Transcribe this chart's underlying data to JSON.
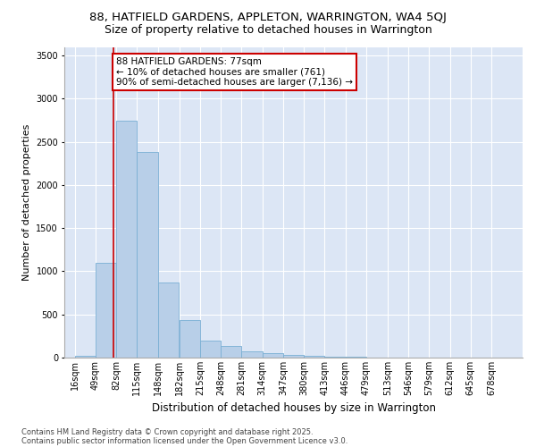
{
  "title_line1": "88, HATFIELD GARDENS, APPLETON, WARRINGTON, WA4 5QJ",
  "title_line2": "Size of property relative to detached houses in Warrington",
  "xlabel": "Distribution of detached houses by size in Warrington",
  "ylabel": "Number of detached properties",
  "bar_color": "#b8cfe8",
  "bar_edge_color": "#7aafd4",
  "bg_color": "#dce6f5",
  "grid_color": "#ffffff",
  "annotation_text": "88 HATFIELD GARDENS: 77sqm\n← 10% of detached houses are smaller (761)\n90% of semi-detached houses are larger (7,136) →",
  "annotation_box_color": "#ffffff",
  "annotation_box_edge": "#cc0000",
  "vline_color": "#cc0000",
  "property_size_sqm": 77,
  "categories": [
    "16sqm",
    "49sqm",
    "82sqm",
    "115sqm",
    "148sqm",
    "182sqm",
    "215sqm",
    "248sqm",
    "281sqm",
    "314sqm",
    "347sqm",
    "380sqm",
    "413sqm",
    "446sqm",
    "479sqm",
    "513sqm",
    "546sqm",
    "579sqm",
    "612sqm",
    "645sqm",
    "678sqm"
  ],
  "bin_edges": [
    16,
    49,
    82,
    115,
    148,
    182,
    215,
    248,
    281,
    314,
    347,
    380,
    413,
    446,
    479,
    513,
    546,
    579,
    612,
    645,
    678
  ],
  "bin_width": 33,
  "values": [
    25,
    1100,
    2750,
    2380,
    875,
    430,
    200,
    130,
    75,
    50,
    30,
    18,
    12,
    7,
    4,
    3,
    2,
    2,
    1,
    1,
    1
  ],
  "ylim": [
    0,
    3600
  ],
  "yticks": [
    0,
    500,
    1000,
    1500,
    2000,
    2500,
    3000,
    3500
  ],
  "footnote_line1": "Contains HM Land Registry data © Crown copyright and database right 2025.",
  "footnote_line2": "Contains public sector information licensed under the Open Government Licence v3.0.",
  "title_fontsize": 9.5,
  "subtitle_fontsize": 9,
  "tick_fontsize": 7,
  "ylabel_fontsize": 8,
  "xlabel_fontsize": 8.5,
  "annot_fontsize": 7.5,
  "footnote_fontsize": 6
}
